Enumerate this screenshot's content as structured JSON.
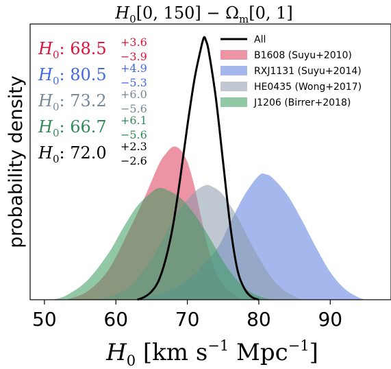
{
  "chart_data": {
    "type": "area",
    "title": {
      "main": "H",
      "sub": "0",
      "rest": "[0, 150] − Ω",
      "sub2": "m",
      "tail": "[0, 1]"
    },
    "ylabel": "probability density",
    "xlabel": {
      "main": "H",
      "sub": "0",
      "rest": " [km s",
      "sup1": "−1",
      "mid": " Mpc",
      "sup2": "−1",
      "tail": "]"
    },
    "xlim": [
      48,
      98.5
    ],
    "ylim": [
      0,
      1.0
    ],
    "xticks": [
      50,
      60,
      70,
      80,
      90
    ],
    "series": [
      {
        "name": "B1608 (Suyu+2010)",
        "color": "#dc3a5a",
        "kind": "fill",
        "points": [
          [
            53,
            0
          ],
          [
            56,
            0.03
          ],
          [
            59,
            0.11
          ],
          [
            62,
            0.26
          ],
          [
            64,
            0.37
          ],
          [
            66,
            0.49
          ],
          [
            67,
            0.53
          ],
          [
            68,
            0.555
          ],
          [
            69,
            0.545
          ],
          [
            70,
            0.5
          ],
          [
            71,
            0.41
          ],
          [
            72,
            0.29
          ],
          [
            73,
            0.18
          ],
          [
            74,
            0.1
          ],
          [
            75.5,
            0.04
          ],
          [
            77,
            0.01
          ],
          [
            78.5,
            0
          ]
        ]
      },
      {
        "name": "RXJ1131 (Suyu+2014)",
        "color": "#5a7ee0",
        "kind": "fill",
        "points": [
          [
            62,
            0
          ],
          [
            66,
            0.02
          ],
          [
            70,
            0.07
          ],
          [
            74,
            0.18
          ],
          [
            76,
            0.28
          ],
          [
            78,
            0.38
          ],
          [
            80,
            0.45
          ],
          [
            81,
            0.455
          ],
          [
            82,
            0.44
          ],
          [
            84,
            0.38
          ],
          [
            86,
            0.29
          ],
          [
            88,
            0.19
          ],
          [
            90,
            0.1
          ],
          [
            92,
            0.04
          ],
          [
            94,
            0.008
          ],
          [
            95,
            0
          ]
        ]
      },
      {
        "name": "HE0435 (Wong+2017)",
        "color": "#8a9aaa",
        "kind": "fill",
        "points": [
          [
            56,
            0
          ],
          [
            59,
            0.01
          ],
          [
            62,
            0.05
          ],
          [
            65,
            0.15
          ],
          [
            67,
            0.24
          ],
          [
            69,
            0.33
          ],
          [
            71,
            0.39
          ],
          [
            72.5,
            0.415
          ],
          [
            73.5,
            0.41
          ],
          [
            75,
            0.38
          ],
          [
            77,
            0.3
          ],
          [
            79,
            0.2
          ],
          [
            81,
            0.11
          ],
          [
            83,
            0.045
          ],
          [
            85,
            0.012
          ],
          [
            86,
            0
          ]
        ]
      },
      {
        "name": "J1206 (Birrer+2018)",
        "color": "#3a9a5e",
        "kind": "fill",
        "points": [
          [
            51,
            0
          ],
          [
            53,
            0.015
          ],
          [
            56,
            0.07
          ],
          [
            59,
            0.17
          ],
          [
            61,
            0.26
          ],
          [
            63,
            0.34
          ],
          [
            65,
            0.39
          ],
          [
            66,
            0.405
          ],
          [
            67,
            0.4
          ],
          [
            69,
            0.37
          ],
          [
            71,
            0.31
          ],
          [
            73,
            0.23
          ],
          [
            75,
            0.14
          ],
          [
            77,
            0.07
          ],
          [
            79,
            0.025
          ],
          [
            81,
            0.005
          ],
          [
            82,
            0
          ]
        ]
      },
      {
        "name": "All",
        "color": "#000000",
        "kind": "line",
        "points": [
          [
            63,
            0
          ],
          [
            64,
            0.01
          ],
          [
            65,
            0.03
          ],
          [
            66,
            0.07
          ],
          [
            67,
            0.15
          ],
          [
            68,
            0.27
          ],
          [
            69,
            0.44
          ],
          [
            70,
            0.63
          ],
          [
            71,
            0.8
          ],
          [
            71.8,
            0.9
          ],
          [
            72.3,
            0.95
          ],
          [
            72.6,
            0.94
          ],
          [
            73,
            0.9
          ],
          [
            74,
            0.73
          ],
          [
            75,
            0.5
          ],
          [
            76,
            0.27
          ],
          [
            77,
            0.11
          ],
          [
            78,
            0.04
          ],
          [
            79,
            0.01
          ],
          [
            80,
            0
          ]
        ]
      }
    ],
    "legend_order": [
      4,
      0,
      1,
      2,
      3
    ],
    "legend_position": "top-right",
    "estimates": [
      {
        "label": "H",
        "sub": "0",
        "value": ": 68.5",
        "plus": "+3.6",
        "minus": "−3.9",
        "color": "#dc143c"
      },
      {
        "label": "H",
        "sub": "0",
        "value": ": 80.5",
        "plus": "+4.9",
        "minus": "−5.3",
        "color": "#4169e1"
      },
      {
        "label": "H",
        "sub": "0",
        "value": ": 73.2",
        "plus": "+6.0",
        "minus": "−5.6",
        "color": "#778899"
      },
      {
        "label": "H",
        "sub": "0",
        "value": ": 66.7",
        "plus": "+6.1",
        "minus": "−5.6",
        "color": "#2e8b57"
      },
      {
        "label": "H",
        "sub": "0",
        "value": ": 72.0",
        "plus": "+2.3",
        "minus": "−2.6",
        "color": "#000000"
      }
    ]
  }
}
